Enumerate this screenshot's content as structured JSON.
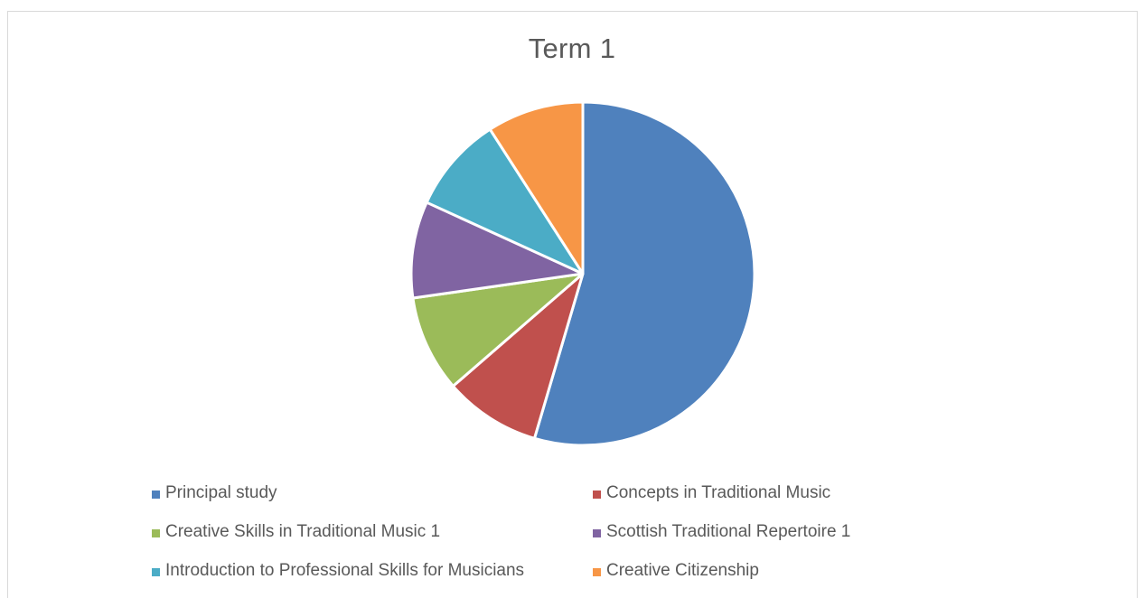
{
  "chart_data": {
    "type": "pie",
    "title": "Term 1",
    "categories": [
      "Principal study",
      "Concepts in Traditional Music",
      "Creative Skills in Traditional Music 1",
      "Scottish Traditional Repertoire 1",
      "Introduction to Professional Skills for Musicians",
      "Creative Citizenship"
    ],
    "values": [
      60,
      10,
      10,
      10,
      10,
      10
    ],
    "colors": [
      "#4F81BD",
      "#C0504D",
      "#9BBB59",
      "#8064A2",
      "#4BACC6",
      "#F79646"
    ],
    "legend_position": "bottom"
  }
}
